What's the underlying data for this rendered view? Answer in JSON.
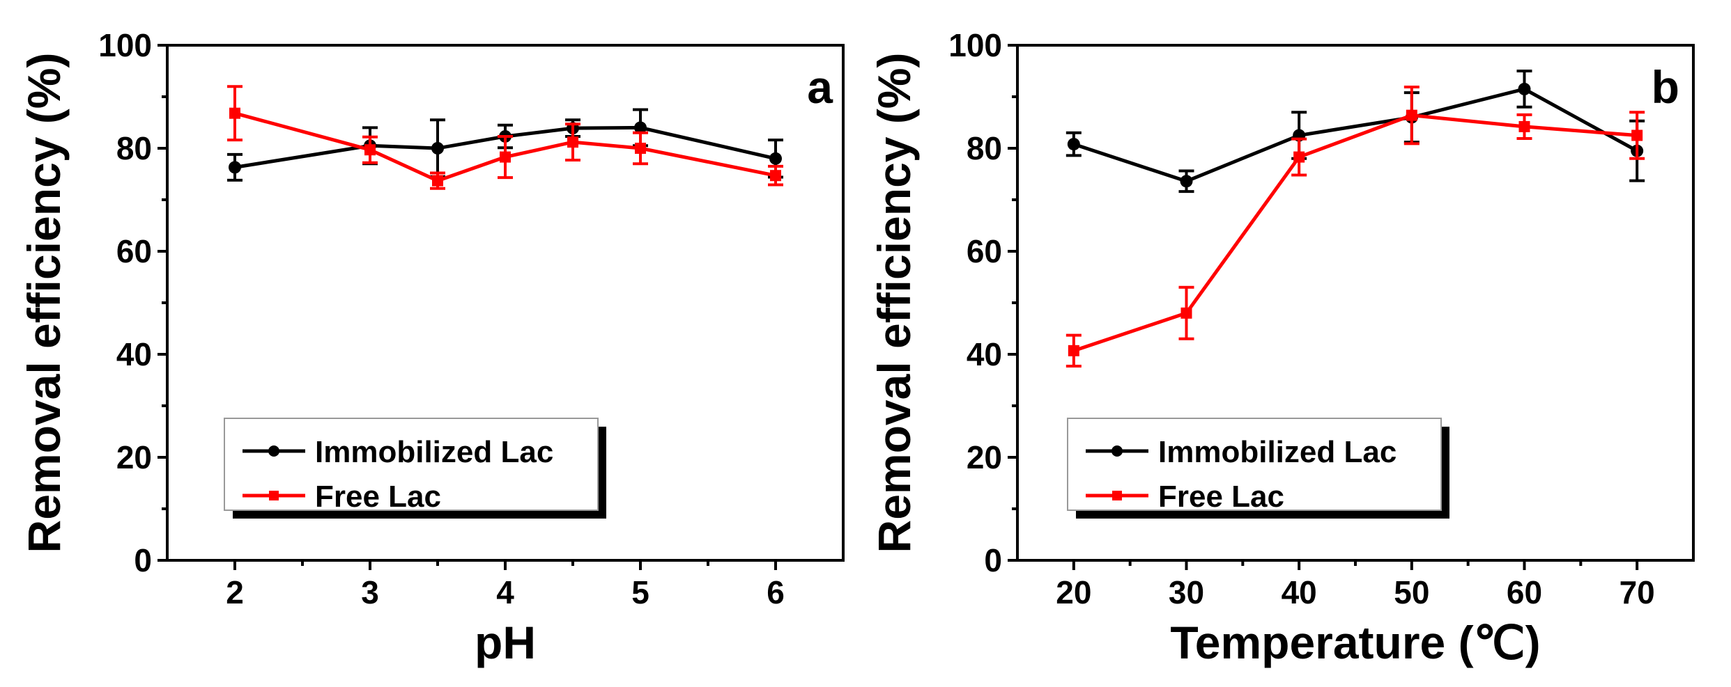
{
  "chart_data": [
    {
      "type": "line",
      "panel_label": "a",
      "xlabel": "pH",
      "ylabel": "Removal efficiency (%)",
      "xlim": [
        1.5,
        6.5
      ],
      "ylim": [
        0,
        100
      ],
      "xticks": [
        2,
        3,
        4,
        5,
        6
      ],
      "yticks": [
        0,
        20,
        40,
        60,
        80,
        100
      ],
      "x": [
        2,
        3,
        3.5,
        4,
        4.5,
        5,
        6
      ],
      "legend_position": "lower-left",
      "series": [
        {
          "name": "Immobilized Lac",
          "color": "#000000",
          "marker": "circle",
          "values": [
            76.3,
            80.5,
            80.0,
            82.3,
            83.9,
            84.0,
            78.0
          ],
          "errors": [
            2.5,
            3.5,
            5.5,
            2.2,
            1.6,
            3.5,
            3.6
          ]
        },
        {
          "name": "Free Lac",
          "color": "#ff0000",
          "marker": "square",
          "values": [
            86.8,
            79.7,
            73.7,
            78.3,
            81.2,
            80.0,
            74.7
          ],
          "errors": [
            5.2,
            2.5,
            1.5,
            4.0,
            3.5,
            3.0,
            1.8
          ]
        }
      ]
    },
    {
      "type": "line",
      "panel_label": "b",
      "xlabel": "Temperature (℃)",
      "ylabel": "Removal efficiency (%)",
      "xlim": [
        15,
        75
      ],
      "ylim": [
        0,
        100
      ],
      "xticks": [
        20,
        30,
        40,
        50,
        60,
        70
      ],
      "yticks": [
        0,
        20,
        40,
        60,
        80,
        100
      ],
      "x": [
        20,
        30,
        40,
        50,
        60,
        70
      ],
      "legend_position": "lower-left",
      "series": [
        {
          "name": "Immobilized Lac",
          "color": "#000000",
          "marker": "circle",
          "values": [
            80.8,
            73.6,
            82.5,
            86.0,
            91.5,
            79.5
          ],
          "errors": [
            2.2,
            2.0,
            4.5,
            4.8,
            3.5,
            5.8
          ]
        },
        {
          "name": "Free Lac",
          "color": "#ff0000",
          "marker": "square",
          "values": [
            40.7,
            48.0,
            78.3,
            86.4,
            84.2,
            82.5
          ],
          "errors": [
            3.0,
            5.0,
            3.5,
            5.5,
            2.3,
            4.5
          ]
        }
      ]
    }
  ]
}
